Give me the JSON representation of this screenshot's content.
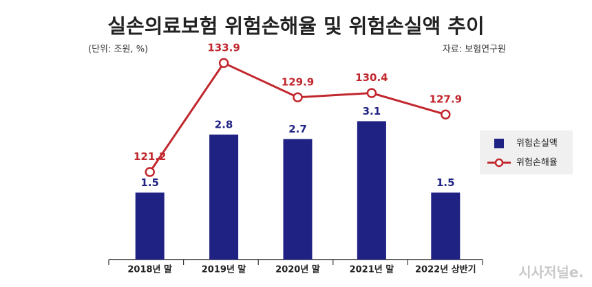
{
  "chart_data": {
    "type": "bar",
    "title": "실손의료보험 위험손해율 및 위험손실액 추이",
    "subtitle": "(단위: 조원, %)",
    "source": "자료: 보험연구원",
    "watermark": "시사저널e.",
    "categories": [
      "2018년 말",
      "2019년 말",
      "2020년 말",
      "2021년 말",
      "2022년 상반기"
    ],
    "series": [
      {
        "name": "위험손실액",
        "type": "bar",
        "color": "#1f2283",
        "values": [
          1.5,
          2.8,
          2.7,
          3.1,
          1.5
        ]
      },
      {
        "name": "위험손해율",
        "type": "line",
        "axis": "y2",
        "color": "#c1272d",
        "values": [
          121.2,
          133.9,
          129.9,
          130.4,
          127.9
        ]
      }
    ],
    "ylim": [
      0,
      5
    ],
    "y2lim": [
      111,
      137
    ],
    "legend": "right"
  }
}
